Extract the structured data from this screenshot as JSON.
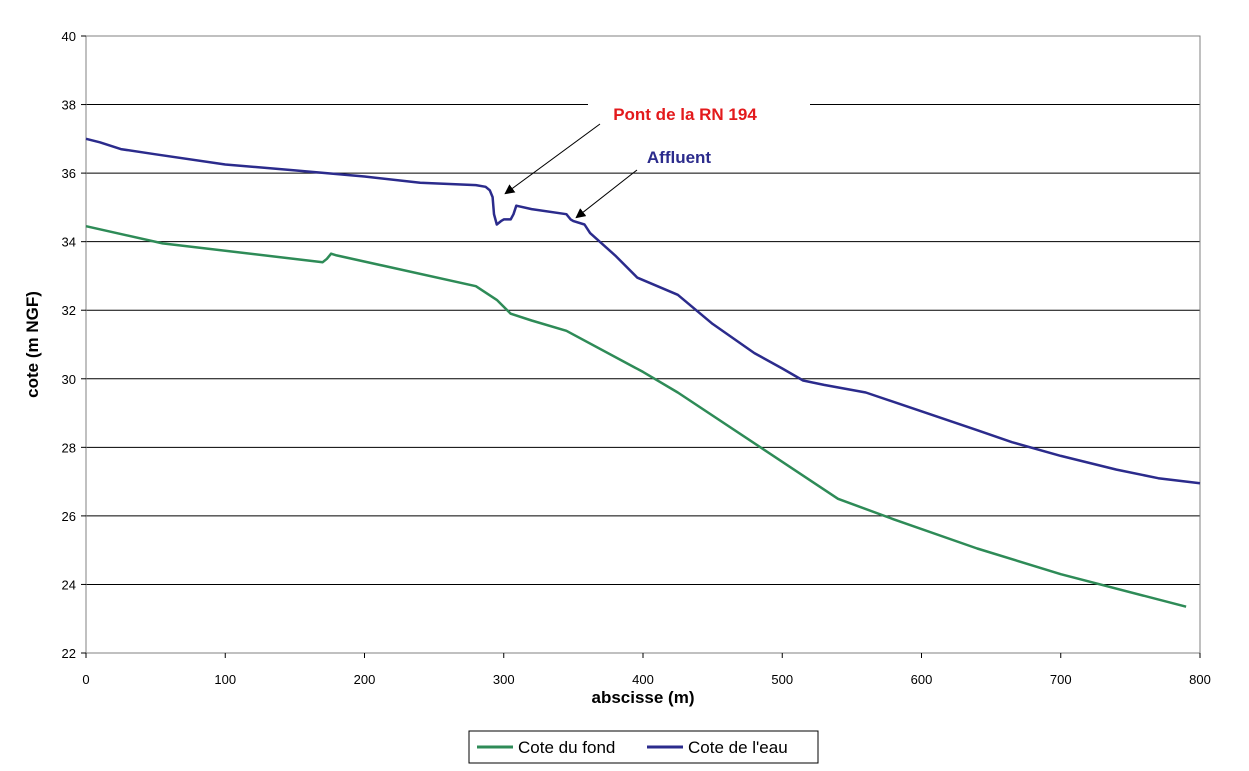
{
  "chart_data": {
    "type": "line",
    "title": "",
    "xlabel": "abscisse (m)",
    "ylabel": "cote (m NGF)",
    "xlim": [
      0,
      800
    ],
    "ylim": [
      22,
      40
    ],
    "xticks": [
      0,
      100,
      200,
      300,
      400,
      500,
      600,
      700,
      800
    ],
    "yticks": [
      22,
      24,
      26,
      28,
      30,
      32,
      34,
      36,
      38,
      40
    ],
    "grid": "horizontal",
    "legend_position": "bottom",
    "series": [
      {
        "name": "Cote du fond",
        "color": "#2e8b57",
        "x": [
          0,
          55,
          170,
          173,
          176,
          180,
          280,
          295,
          305,
          320,
          345,
          400,
          425,
          540,
          580,
          640,
          700,
          790
        ],
        "y": [
          34.45,
          33.95,
          33.4,
          33.5,
          33.65,
          33.6,
          32.7,
          32.3,
          31.9,
          31.7,
          31.4,
          30.2,
          29.6,
          26.5,
          25.9,
          25.05,
          24.3,
          23.35
        ]
      },
      {
        "name": "Cote de l'eau",
        "color": "#2b2b8c",
        "x": [
          0,
          10,
          25,
          50,
          100,
          150,
          200,
          240,
          280,
          287,
          290,
          292,
          293,
          295,
          298,
          300,
          305,
          307,
          309,
          320,
          345,
          348,
          350,
          358,
          362,
          380,
          396,
          425,
          450,
          480,
          500,
          515,
          530,
          560,
          600,
          640,
          665,
          700,
          740,
          770,
          800
        ],
        "y": [
          37.0,
          36.9,
          36.7,
          36.55,
          36.25,
          36.08,
          35.9,
          35.72,
          35.65,
          35.6,
          35.5,
          35.3,
          34.8,
          34.5,
          34.6,
          34.65,
          34.65,
          34.8,
          35.05,
          34.95,
          34.8,
          34.65,
          34.6,
          34.5,
          34.25,
          33.6,
          32.95,
          32.45,
          31.6,
          30.75,
          30.3,
          29.95,
          29.82,
          29.6,
          29.05,
          28.5,
          28.15,
          27.75,
          27.35,
          27.1,
          26.95
        ]
      }
    ],
    "annotations": [
      {
        "text": "Pont de la RN 194",
        "color": "#e31a1c",
        "target_x": 301,
        "target_y": 35.4
      },
      {
        "text": "Affluent",
        "color": "#2b2b8c",
        "target_x": 352,
        "target_y": 34.7
      }
    ]
  }
}
